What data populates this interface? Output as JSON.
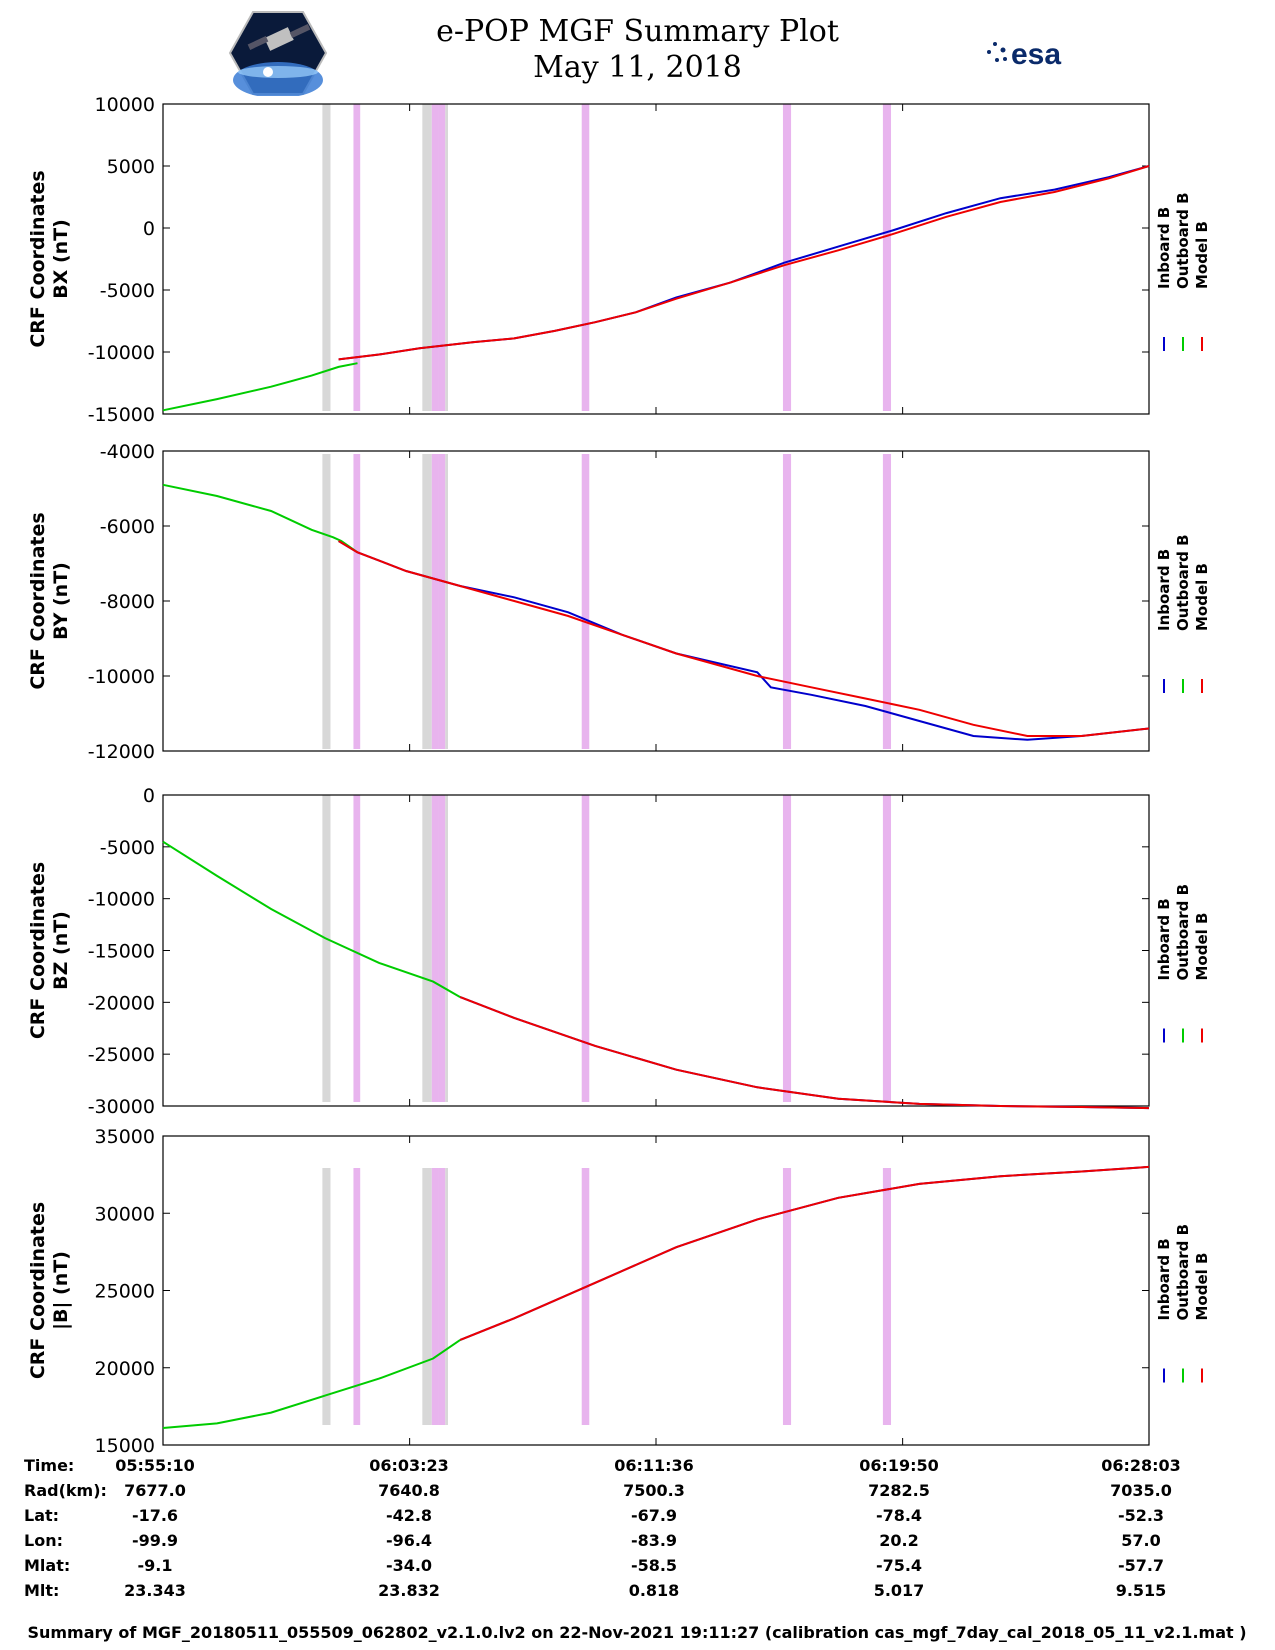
{
  "header": {
    "title": "e-POP MGF Summary Plot",
    "date": "May 11, 2018",
    "mission_logo": "cassiope-satellite-logo",
    "agency_logo_text": "esa"
  },
  "chart_data": [
    {
      "type": "line",
      "ylabel": [
        "CRF Coordinates",
        "BX (nT)"
      ],
      "ylim": [
        -15000,
        10000
      ],
      "yticks": [
        10000,
        5000,
        0,
        -5000,
        -10000,
        -15000
      ],
      "series": [
        {
          "name": "Inboard B",
          "color": "#0000cc",
          "points": [
            [
              65,
              -10600
            ],
            [
              80,
              -10200
            ],
            [
              95,
              -9700
            ],
            [
              115,
              -9200
            ],
            [
              130,
              -8900
            ],
            [
              145,
              -8300
            ],
            [
              160,
              -7600
            ],
            [
              175,
              -6800
            ],
            [
              190,
              -5600
            ],
            [
              210,
              -4400
            ],
            [
              230,
              -2800
            ],
            [
              250,
              -1500
            ],
            [
              270,
              -200
            ],
            [
              290,
              1200
            ],
            [
              310,
              2400
            ],
            [
              330,
              3100
            ],
            [
              350,
              4100
            ],
            [
              365,
              5000
            ]
          ]
        },
        {
          "name": "Outboard B",
          "color": "#00cc00",
          "points": [
            [
              0,
              -14700
            ],
            [
              20,
              -13800
            ],
            [
              40,
              -12800
            ],
            [
              55,
              -11900
            ],
            [
              65,
              -11200
            ],
            [
              72,
              -10900
            ]
          ]
        },
        {
          "name": "Model B",
          "color": "#ee0000",
          "points": [
            [
              65,
              -10600
            ],
            [
              80,
              -10200
            ],
            [
              95,
              -9700
            ],
            [
              115,
              -9200
            ],
            [
              130,
              -8900
            ],
            [
              145,
              -8300
            ],
            [
              160,
              -7600
            ],
            [
              175,
              -6800
            ],
            [
              190,
              -5700
            ],
            [
              210,
              -4400
            ],
            [
              230,
              -3000
            ],
            [
              250,
              -1800
            ],
            [
              270,
              -500
            ],
            [
              290,
              900
            ],
            [
              310,
              2100
            ],
            [
              330,
              2900
            ],
            [
              350,
              4000
            ],
            [
              365,
              5000
            ]
          ]
        }
      ]
    },
    {
      "type": "line",
      "ylabel": [
        "CRF Coordinates",
        "BY (nT)"
      ],
      "ylim": [
        -12000,
        -4000
      ],
      "yticks": [
        -4000,
        -6000,
        -8000,
        -10000,
        -12000
      ],
      "series": [
        {
          "name": "Inboard B",
          "color": "#0000cc",
          "points": [
            [
              65,
              -6400
            ],
            [
              72,
              -6700
            ],
            [
              90,
              -7200
            ],
            [
              110,
              -7600
            ],
            [
              130,
              -7900
            ],
            [
              150,
              -8300
            ],
            [
              170,
              -8900
            ],
            [
              190,
              -9400
            ],
            [
              220,
              -9900
            ],
            [
              225,
              -10300
            ],
            [
              240,
              -10500
            ],
            [
              260,
              -10800
            ],
            [
              270,
              -11000
            ],
            [
              280,
              -11200
            ],
            [
              290,
              -11400
            ],
            [
              300,
              -11600
            ],
            [
              320,
              -11700
            ],
            [
              340,
              -11600
            ],
            [
              365,
              -11400
            ]
          ]
        },
        {
          "name": "Outboard B",
          "color": "#00cc00",
          "points": [
            [
              0,
              -4900
            ],
            [
              20,
              -5200
            ],
            [
              40,
              -5600
            ],
            [
              55,
              -6100
            ],
            [
              63,
              -6300
            ],
            [
              66,
              -6400
            ],
            [
              72,
              -6700
            ]
          ]
        },
        {
          "name": "Model B",
          "color": "#ee0000",
          "points": [
            [
              65,
              -6400
            ],
            [
              72,
              -6700
            ],
            [
              90,
              -7200
            ],
            [
              110,
              -7600
            ],
            [
              130,
              -8000
            ],
            [
              150,
              -8400
            ],
            [
              170,
              -8900
            ],
            [
              190,
              -9400
            ],
            [
              220,
              -10000
            ],
            [
              240,
              -10300
            ],
            [
              260,
              -10600
            ],
            [
              280,
              -10900
            ],
            [
              300,
              -11300
            ],
            [
              320,
              -11600
            ],
            [
              340,
              -11600
            ],
            [
              365,
              -11400
            ]
          ]
        }
      ]
    },
    {
      "type": "line",
      "ylabel": [
        "CRF Coordinates",
        "BZ (nT)"
      ],
      "ylim": [
        -30000,
        0
      ],
      "yticks": [
        0,
        -5000,
        -10000,
        -15000,
        -20000,
        -25000,
        -30000
      ],
      "series": [
        {
          "name": "Inboard B",
          "color": "#0000cc",
          "points": [
            [
              110,
              -19500
            ],
            [
              130,
              -21500
            ],
            [
              160,
              -24200
            ],
            [
              190,
              -26500
            ],
            [
              220,
              -28200
            ],
            [
              250,
              -29300
            ],
            [
              280,
              -29800
            ],
            [
              310,
              -30000
            ],
            [
              340,
              -30100
            ],
            [
              365,
              -30200
            ]
          ]
        },
        {
          "name": "Outboard B",
          "color": "#00cc00",
          "points": [
            [
              0,
              -4500
            ],
            [
              20,
              -7800
            ],
            [
              40,
              -11000
            ],
            [
              60,
              -13800
            ],
            [
              80,
              -16200
            ],
            [
              100,
              -18000
            ],
            [
              110,
              -19500
            ]
          ]
        },
        {
          "name": "Model B",
          "color": "#ee0000",
          "points": [
            [
              110,
              -19500
            ],
            [
              130,
              -21500
            ],
            [
              160,
              -24200
            ],
            [
              190,
              -26500
            ],
            [
              220,
              -28200
            ],
            [
              250,
              -29300
            ],
            [
              280,
              -29800
            ],
            [
              310,
              -30000
            ],
            [
              340,
              -30100
            ],
            [
              365,
              -30200
            ]
          ]
        }
      ]
    },
    {
      "type": "line",
      "ylabel": [
        "CRF Coordinates",
        "|B| (nT)"
      ],
      "ylim": [
        15000,
        35000
      ],
      "yticks": [
        35000,
        30000,
        25000,
        20000,
        15000
      ],
      "series": [
        {
          "name": "Inboard B",
          "color": "#0000cc",
          "points": [
            [
              110,
              21800
            ],
            [
              130,
              23200
            ],
            [
              160,
              25500
            ],
            [
              190,
              27800
            ],
            [
              220,
              29600
            ],
            [
              250,
              31000
            ],
            [
              280,
              31900
            ],
            [
              310,
              32400
            ],
            [
              340,
              32700
            ],
            [
              365,
              33000
            ]
          ]
        },
        {
          "name": "Outboard B",
          "color": "#00cc00",
          "points": [
            [
              0,
              16100
            ],
            [
              20,
              16400
            ],
            [
              40,
              17100
            ],
            [
              60,
              18200
            ],
            [
              80,
              19300
            ],
            [
              100,
              20600
            ],
            [
              110,
              21800
            ]
          ]
        },
        {
          "name": "Model B",
          "color": "#ee0000",
          "points": [
            [
              110,
              21800
            ],
            [
              130,
              23200
            ],
            [
              160,
              25500
            ],
            [
              190,
              27800
            ],
            [
              220,
              29600
            ],
            [
              250,
              31000
            ],
            [
              280,
              31900
            ],
            [
              310,
              32400
            ],
            [
              340,
              32700
            ],
            [
              365,
              33000
            ]
          ]
        }
      ]
    }
  ],
  "legend": [
    "Inboard B",
    "Outboard B",
    "Model B"
  ],
  "shaded_bands": [
    {
      "start": 59,
      "end": 62,
      "color": "#d8d8d8"
    },
    {
      "start": 70.5,
      "end": 73,
      "color": "#e8b4ee"
    },
    {
      "start": 96,
      "end": 99.5,
      "color": "#d8d8d8"
    },
    {
      "start": 99.5,
      "end": 102,
      "color": "#e8b4ee"
    },
    {
      "start": 102,
      "end": 104.5,
      "color": "#e8b4ee"
    },
    {
      "start": 104.5,
      "end": 105.5,
      "color": "#d8d8d8"
    },
    {
      "start": 155,
      "end": 157.8,
      "color": "#e8b4ee"
    },
    {
      "start": 229.5,
      "end": 232.5,
      "color": "#e8b4ee"
    },
    {
      "start": 266.5,
      "end": 269.5,
      "color": "#e8b4ee"
    }
  ],
  "ephemeris": {
    "row_labels": [
      "Time:",
      "Rad(km):",
      "Lat:",
      "Lon:",
      "Mlat:",
      "Mlt:"
    ],
    "columns": [
      [
        "05:55:10",
        "7677.0",
        "-17.6",
        "-99.9",
        "-9.1",
        "23.343"
      ],
      [
        "06:03:23",
        "7640.8",
        "-42.8",
        "-96.4",
        "-34.0",
        "23.832"
      ],
      [
        "06:11:36",
        "7500.3",
        "-67.9",
        "-83.9",
        "-58.5",
        "0.818"
      ],
      [
        "06:19:50",
        "7282.5",
        "-78.4",
        "20.2",
        "-75.4",
        "5.017"
      ],
      [
        "06:28:03",
        "7035.0",
        "-52.3",
        "57.0",
        "-57.7",
        "9.515"
      ]
    ]
  },
  "footer": "Summary of MGF_20180511_055509_062802_v2.1.0.lv2 on 22-Nov-2021 19:11:27 (calibration cas_mgf_7day_cal_2018_05_11_v2.1.mat )"
}
